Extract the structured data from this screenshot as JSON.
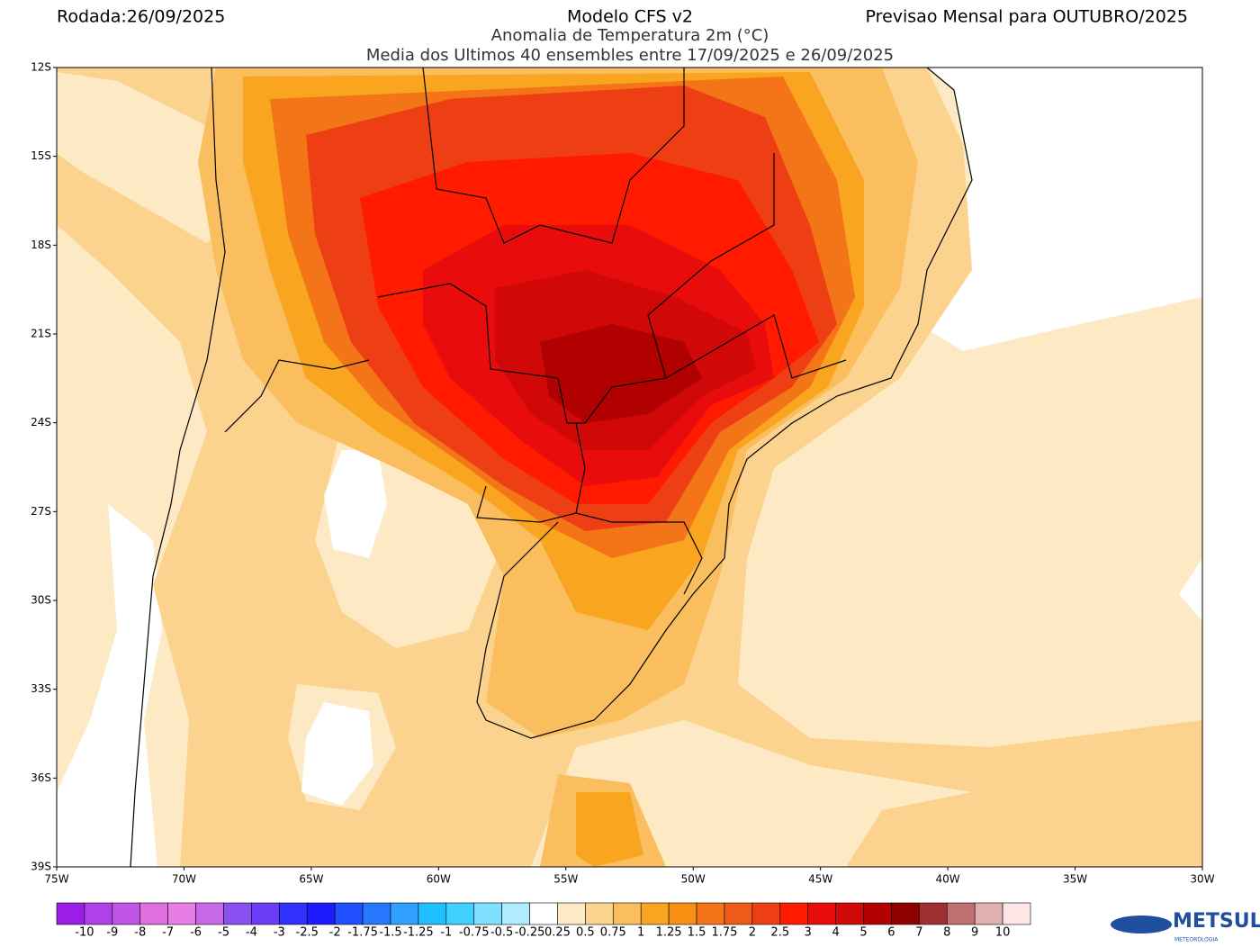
{
  "header": {
    "run": "Rodada:26/09/2025",
    "model": "Modelo CFS v2",
    "variable": "Anomalia de Temperatura 2m (°C)",
    "ensemble": "Media dos Ultimos 40 ensembles entre 17/09/2025 e 26/09/2025",
    "forecast": "Previsao Mensal para OUTUBRO/2025"
  },
  "map": {
    "lat_labels": [
      "12S",
      "15S",
      "18S",
      "21S",
      "24S",
      "27S",
      "30S",
      "33S",
      "36S",
      "39S"
    ],
    "lon_labels": [
      "75W",
      "70W",
      "65W",
      "60W",
      "55W",
      "50W",
      "45W",
      "40W",
      "35W",
      "30W"
    ]
  },
  "colorbar": {
    "levels": [
      -10,
      -9,
      -8,
      -7,
      -6,
      -5,
      -4,
      -3,
      -2.5,
      -2,
      -1.75,
      -1.5,
      -1.25,
      -1,
      -0.75,
      -0.5,
      -0.25,
      0.25,
      0.5,
      0.75,
      1,
      1.25,
      1.5,
      1.75,
      2,
      2.5,
      3,
      4,
      5,
      6,
      7,
      8,
      9,
      10
    ],
    "colors": [
      "#9a1ee8",
      "#b040e8",
      "#c055e8",
      "#e070e0",
      "#e87de8",
      "#c868e8",
      "#8c50f0",
      "#6a3cf5",
      "#3030ff",
      "#1c1cff",
      "#2050ff",
      "#2878ff",
      "#2fa0ff",
      "#1ec0ff",
      "#40d0ff",
      "#80e0ff",
      "#b0ecff",
      "#ffffff",
      "#fdeac4",
      "#fcd38e",
      "#fbbe5e",
      "#f9a520",
      "#f79010",
      "#f47418",
      "#f05a18",
      "#ee3e14",
      "#ff1a00",
      "#e80c0c",
      "#d00808",
      "#b00000",
      "#900000",
      "#a03030",
      "#c07070",
      "#e0b0b0",
      "#ffe6e6"
    ]
  },
  "logo": {
    "name": "METSUL",
    "tagline": "METEOROLOGIA"
  }
}
